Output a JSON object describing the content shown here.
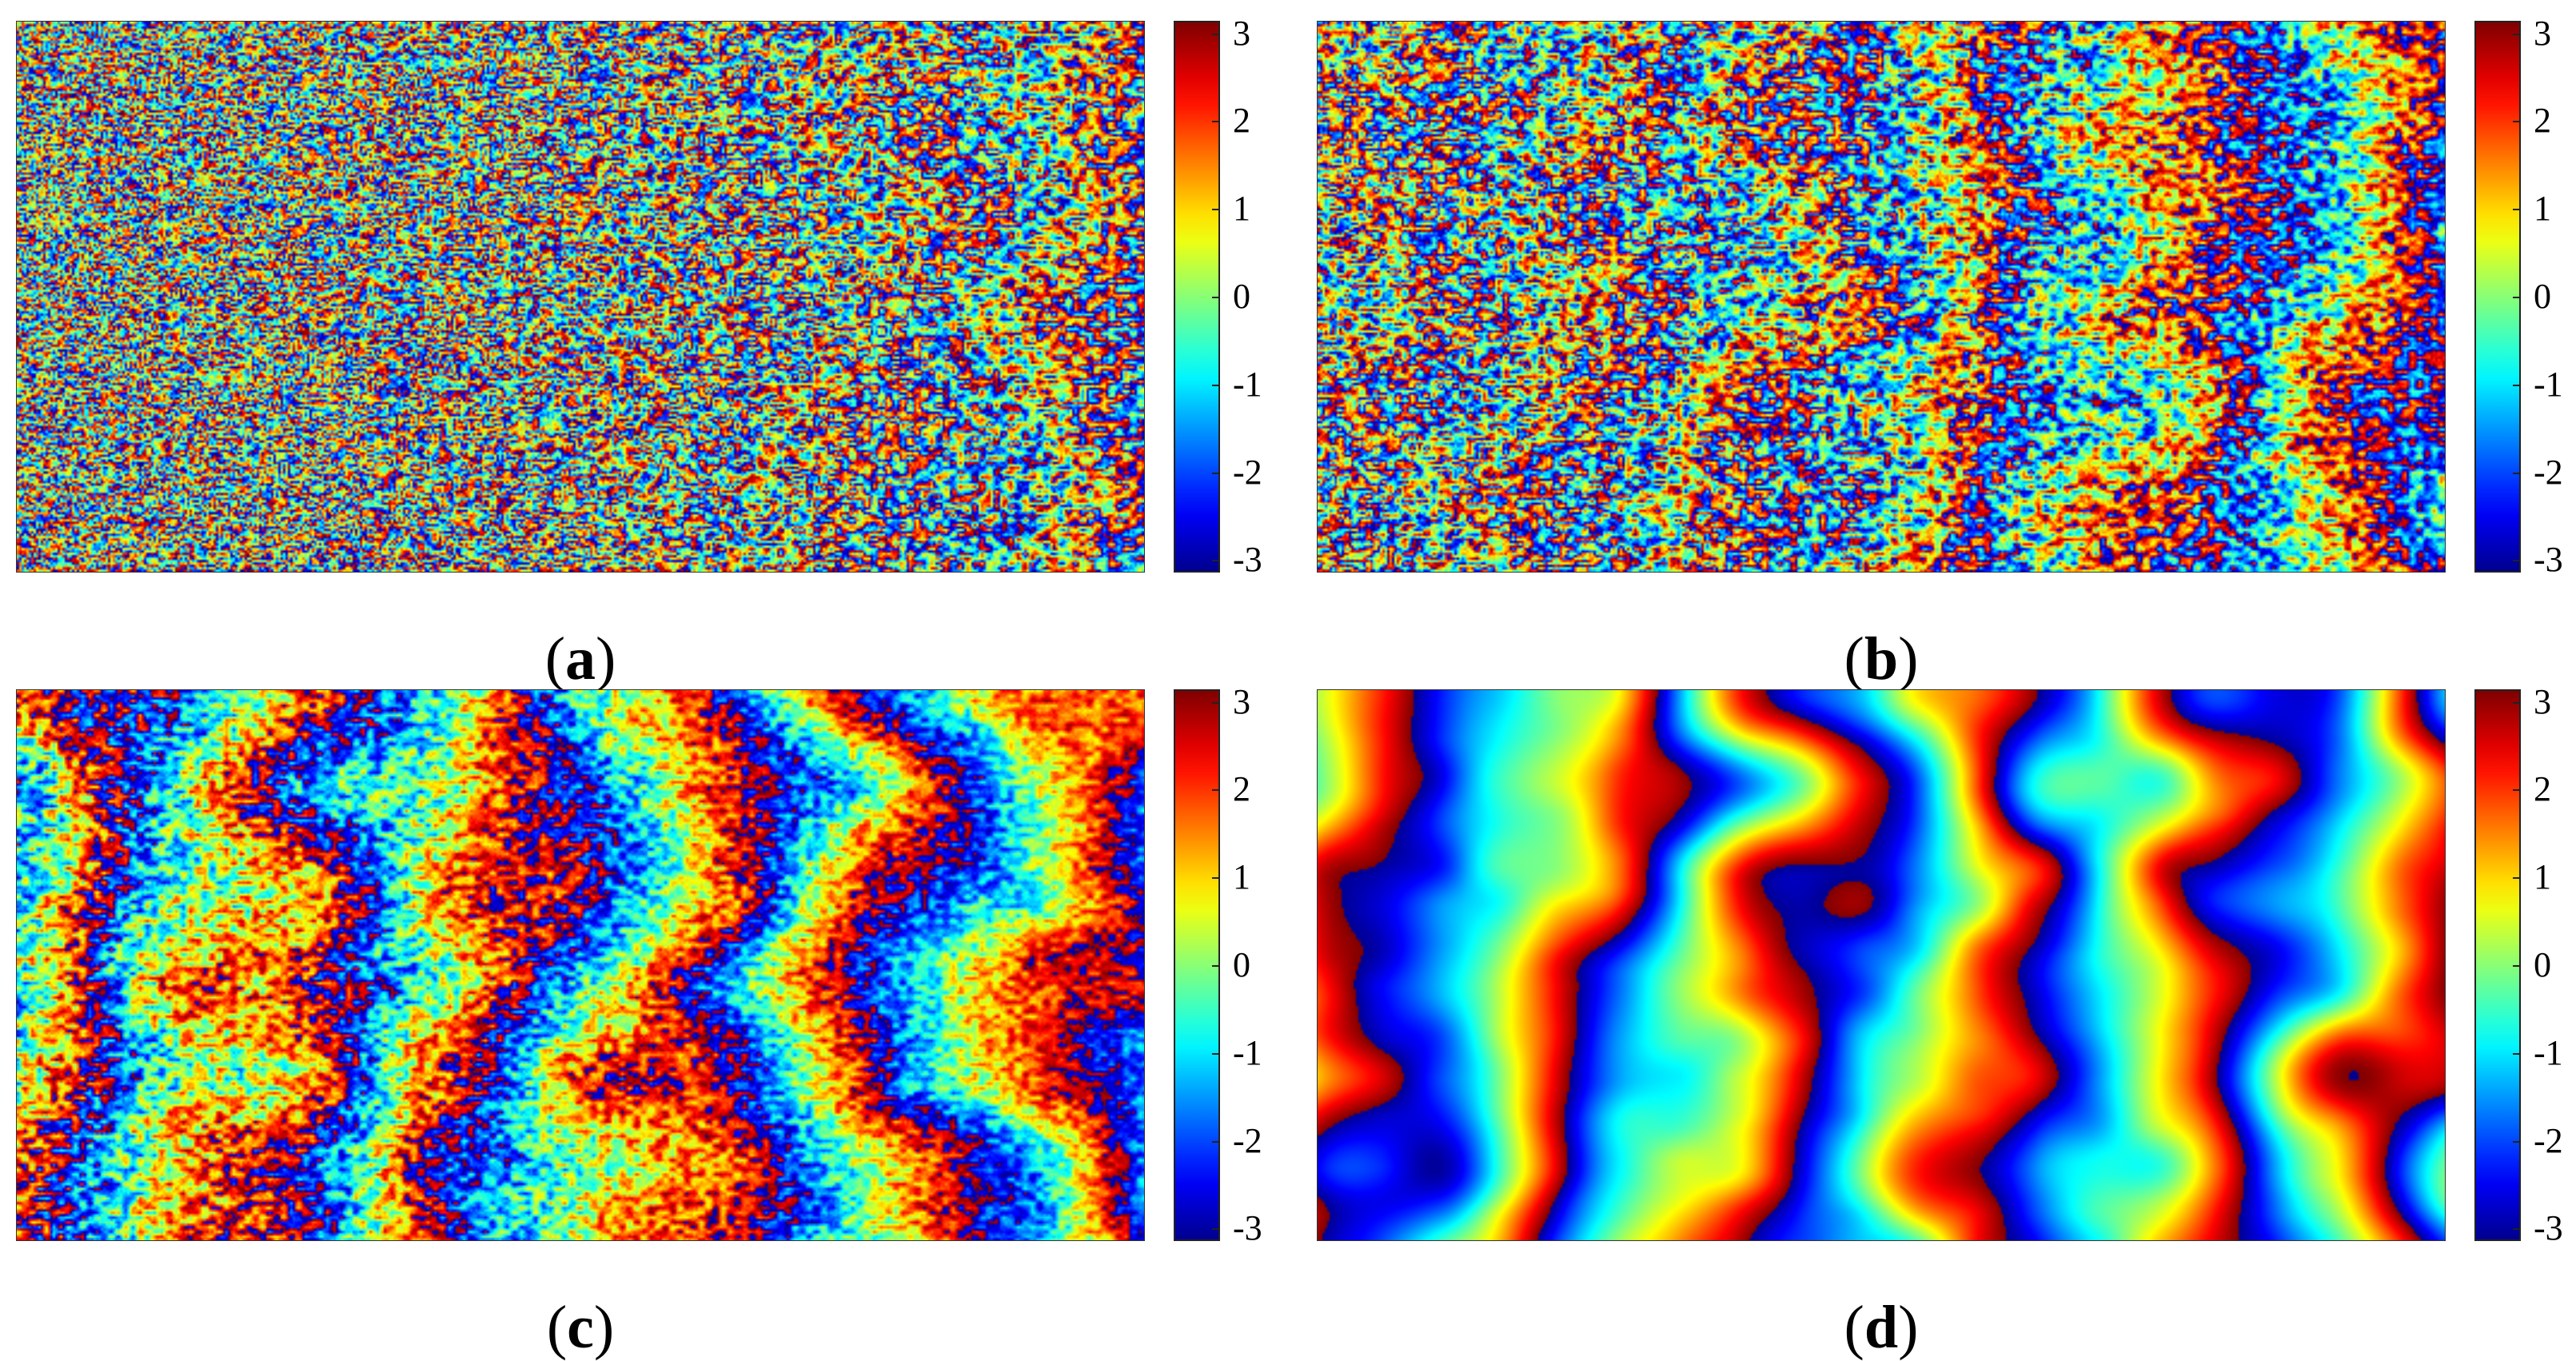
{
  "figure": {
    "colormap": {
      "name": "jet",
      "stops": [
        "#00008f",
        "#0000ff",
        "#00ffff",
        "#ffff00",
        "#ff0000",
        "#800000"
      ]
    }
  },
  "chart_data": [
    {
      "type": "heatmap",
      "panel_label": "a",
      "colorbar": {
        "range": [
          -3.14159,
          3.14159
        ],
        "ticks": [
          "3",
          "2",
          "1",
          "0",
          "-1",
          "-2",
          "-3"
        ]
      },
      "pattern": {
        "noise": 0.95,
        "smooth": 0.0,
        "stripe_count": 5.5
      }
    },
    {
      "type": "heatmap",
      "panel_label": "b",
      "colorbar": {
        "range": [
          -3.14159,
          3.14159
        ],
        "ticks": [
          "3",
          "2",
          "1",
          "0",
          "-1",
          "-2",
          "-3"
        ]
      },
      "pattern": {
        "noise": 0.6,
        "smooth": 0.2,
        "stripe_count": 5.5
      }
    },
    {
      "type": "heatmap",
      "panel_label": "c",
      "colorbar": {
        "range": [
          -3.14159,
          3.14159
        ],
        "ticks": [
          "3",
          "2",
          "1",
          "0",
          "-1",
          "-2",
          "-3"
        ]
      },
      "pattern": {
        "noise": 0.3,
        "smooth": 0.5,
        "stripe_count": 5.5
      }
    },
    {
      "type": "heatmap",
      "panel_label": "d",
      "colorbar": {
        "range": [
          -3.14159,
          3.14159
        ],
        "ticks": [
          "3",
          "2",
          "1",
          "0",
          "-1",
          "-2",
          "-3"
        ]
      },
      "pattern": {
        "noise": 0.0,
        "smooth": 1.0,
        "stripe_count": 5.5
      }
    }
  ]
}
